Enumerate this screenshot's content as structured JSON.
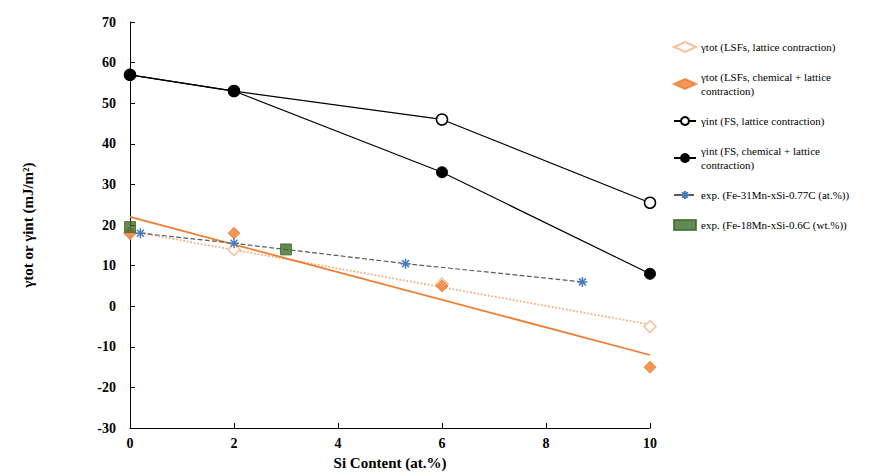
{
  "chart_data": {
    "type": "line",
    "x_label": "Si Content (at.%)",
    "y_label": "γtot or γint (mJ/m²)",
    "xlim": [
      0,
      10
    ],
    "xticks": [
      0,
      2,
      4,
      6,
      8,
      10
    ],
    "ylim": [
      -30,
      70
    ],
    "yticks": [
      -30,
      -20,
      -10,
      0,
      10,
      20,
      30,
      40,
      50,
      60,
      70
    ],
    "grid": false,
    "legend": "right",
    "series": [
      {
        "name": "γtot (LSFs, lattice contraction)",
        "type": "scatter",
        "marker": "diamond-open",
        "color": "#f4b183",
        "x": [
          0,
          2,
          6,
          10
        ],
        "values": [
          18,
          14,
          5.5,
          -5
        ]
      },
      {
        "name": "γtot (LSFs, chemical + lattice contraction)",
        "type": "scatter",
        "marker": "diamond",
        "color": "#ed7d31",
        "x": [
          0,
          2,
          6,
          10
        ],
        "values": [
          18,
          18,
          5,
          -15
        ]
      },
      {
        "name": "γint (FS, lattice contraction)",
        "type": "line",
        "marker": "circle-open",
        "color": "#000000",
        "line_style": "solid",
        "x": [
          0,
          2,
          6,
          10
        ],
        "values": [
          57,
          53,
          46,
          25.5
        ]
      },
      {
        "name": "γint (FS, chemical + lattice contraction)",
        "type": "line",
        "marker": "circle",
        "color": "#000000",
        "line_style": "solid",
        "x": [
          0,
          2,
          6,
          10
        ],
        "values": [
          57,
          53,
          33,
          8
        ]
      },
      {
        "name": "exp. (Fe-31Mn-xSi-0.77C (at.%))",
        "type": "line",
        "marker": "asterisk",
        "color": "#4a7ebb",
        "line_style": "dashed",
        "x": [
          0.2,
          2,
          5.3,
          8.7
        ],
        "values": [
          18,
          15.5,
          10.5,
          6
        ]
      },
      {
        "name": "exp. (Fe-18Mn-xSi-0.6C (wt.%))",
        "type": "scatter",
        "marker": "square",
        "color": "#3d6b2a",
        "x": [
          0,
          3
        ],
        "values": [
          19.5,
          14
        ]
      },
      {
        "type": "line",
        "marker": "none",
        "color": "#f4b183",
        "line_style": "dotted",
        "x": [
          0,
          10
        ],
        "values": [
          18.5,
          -4.5
        ]
      },
      {
        "type": "line",
        "marker": "none",
        "color": "#ed7d31",
        "line_style": "solid",
        "x": [
          0,
          10
        ],
        "values": [
          22,
          -12
        ]
      }
    ]
  }
}
